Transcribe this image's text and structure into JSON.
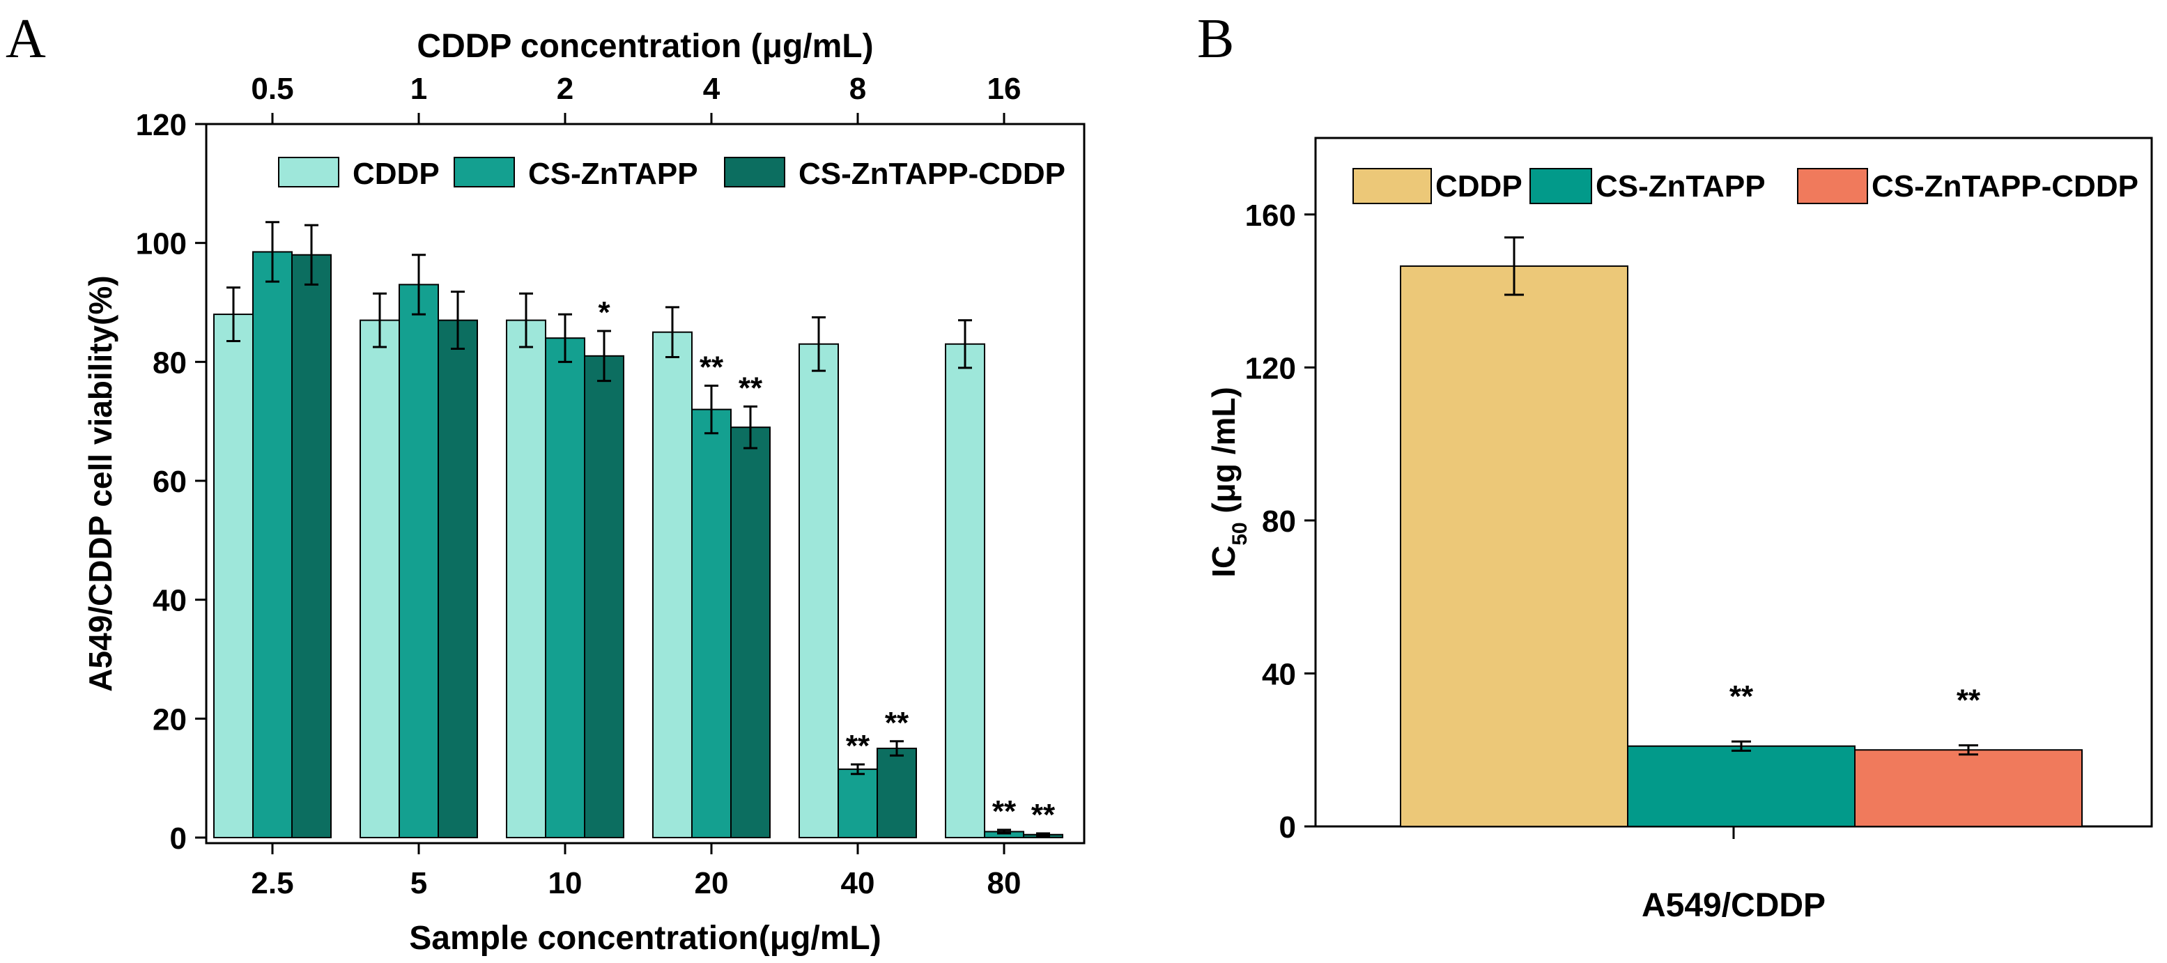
{
  "colors": {
    "light_teal": "#9EE7DA",
    "teal": "#14A090",
    "dark_teal": "#0C6E60",
    "gold": "#ECC878",
    "b_teal": "#029A8A",
    "salmon": "#F07A5C",
    "axis": "#000000"
  },
  "chart_data": [
    {
      "panel_label": "A",
      "type": "bar",
      "title": "",
      "xlabel": "Sample concentration(μg/mL)",
      "ylabel": "A549/CDDP cell viability(%)",
      "top_axis_label": "CDDP concentration (μg/mL)",
      "categories": [
        "2.5",
        "5",
        "10",
        "20",
        "40",
        "80"
      ],
      "top_categories": [
        "0.5",
        "1",
        "2",
        "4",
        "8",
        "16"
      ],
      "ylim": [
        0,
        120
      ],
      "yticks": [
        "0",
        "20",
        "40",
        "60",
        "80",
        "100",
        "120"
      ],
      "legend_position": "top",
      "series": [
        {
          "name": "CDDP",
          "color_key": "light_teal",
          "values": [
            88,
            87,
            87,
            85,
            83,
            83
          ],
          "errors": [
            4.5,
            4.5,
            4.5,
            4.2,
            4.5,
            4.0
          ],
          "sig": [
            "",
            "",
            "",
            "",
            "",
            ""
          ]
        },
        {
          "name": "CS-ZnTAPP",
          "color_key": "teal",
          "values": [
            98.5,
            93,
            84,
            72,
            11.5,
            1
          ],
          "errors": [
            5,
            5,
            4,
            4,
            0.8,
            0.3
          ],
          "sig": [
            "",
            "",
            "",
            "**",
            "**",
            "**"
          ]
        },
        {
          "name": "CS-ZnTAPP-CDDP",
          "color_key": "dark_teal",
          "values": [
            98,
            87,
            81,
            69,
            15,
            0.5
          ],
          "errors": [
            5,
            4.8,
            4.2,
            3.5,
            1.2,
            0.2
          ],
          "sig": [
            "",
            "",
            "*",
            "**",
            "**",
            "**"
          ]
        }
      ]
    },
    {
      "panel_label": "B",
      "type": "bar",
      "title": "",
      "xlabel": "A549/CDDP",
      "ylabel_main": "IC",
      "ylabel_sub": "50",
      "ylabel_rest": " (μg /mL)",
      "ylim": [
        0,
        180
      ],
      "yticks": [
        "0",
        "40",
        "80",
        "120",
        "160"
      ],
      "legend_position": "top",
      "series": [
        {
          "name": "CDDP",
          "color_key": "gold",
          "value": 146.5,
          "error": 7.5,
          "sig": ""
        },
        {
          "name": "CS-ZnTAPP",
          "color_key": "b_teal",
          "value": 21,
          "error": 1.2,
          "sig": "**"
        },
        {
          "name": "CS-ZnTAPP-CDDP",
          "color_key": "salmon",
          "value": 20,
          "error": 1.2,
          "sig": "**"
        }
      ]
    }
  ]
}
